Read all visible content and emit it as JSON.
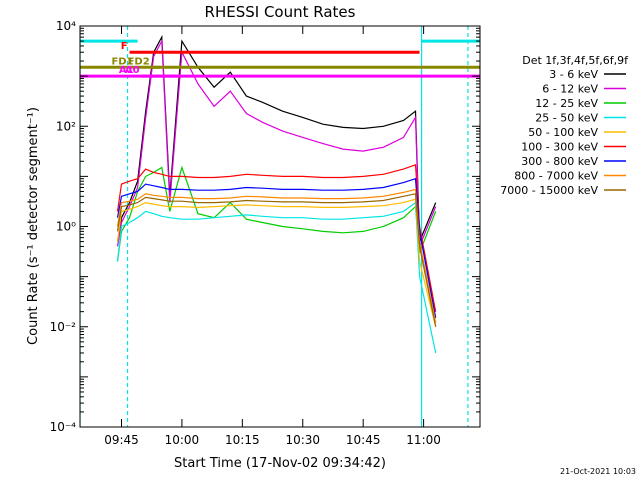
{
  "chart_data": {
    "type": "line",
    "title": "RHESSI Count Rates",
    "xlabel": "Start Time (17-Nov-02 09:34:42)",
    "ylabel": "Count Rate (s⁻¹ detector segment⁻¹)",
    "y_scale": "log",
    "ylim": [
      0.0001,
      10000
    ],
    "y_ticks": [
      "10⁻⁴",
      "10⁻²",
      "10⁰",
      "10²",
      "10⁴"
    ],
    "xlim": [
      "09:34:42",
      "11:14:00"
    ],
    "x_ticks": [
      "09:45",
      "10:00",
      "10:15",
      "10:30",
      "10:45",
      "11:00"
    ],
    "legend_title": "Det 1f,3f,4f,5f,6f,9f",
    "legend_position": "right",
    "series": [
      {
        "name": "3 - 6 keV",
        "color": "#000000",
        "x": [
          "09:44",
          "09:45",
          "09:47",
          "09:49",
          "09:51",
          "09:53",
          "09:55",
          "09:57",
          "10:00",
          "10:04",
          "10:08",
          "10:12",
          "10:16",
          "10:20",
          "10:25",
          "10:30",
          "10:35",
          "10:40",
          "10:45",
          "10:50",
          "10:55",
          "10:58",
          "10:59",
          "11:03"
        ],
        "values": [
          0.5,
          1.5,
          3,
          8,
          200,
          3000,
          6000,
          4,
          5000,
          1500,
          600,
          1200,
          400,
          300,
          200,
          150,
          110,
          95,
          90,
          100,
          130,
          200,
          0.5,
          3
        ]
      },
      {
        "name": "6 - 12 keV",
        "color": "#dd00dd",
        "x": [
          "09:44",
          "09:45",
          "09:47",
          "09:49",
          "09:51",
          "09:53",
          "09:55",
          "09:57",
          "10:00",
          "10:04",
          "10:08",
          "10:12",
          "10:16",
          "10:20",
          "10:25",
          "10:30",
          "10:35",
          "10:40",
          "10:45",
          "10:50",
          "10:55",
          "10:58",
          "10:59",
          "11:03"
        ],
        "values": [
          0.4,
          1.2,
          2.5,
          6,
          150,
          2500,
          5000,
          3,
          3000,
          700,
          250,
          500,
          180,
          120,
          80,
          60,
          45,
          35,
          32,
          38,
          60,
          150,
          0.4,
          2.5
        ]
      },
      {
        "name": "12 - 25 keV",
        "color": "#00cc00",
        "x": [
          "09:44",
          "09:45",
          "09:47",
          "09:49",
          "09:51",
          "09:53",
          "09:55",
          "09:57",
          "10:00",
          "10:04",
          "10:08",
          "10:12",
          "10:16",
          "10:20",
          "10:25",
          "10:30",
          "10:35",
          "10:40",
          "10:45",
          "10:50",
          "10:55",
          "10:58",
          "10:59",
          "11:03"
        ],
        "values": [
          0.2,
          0.8,
          1.5,
          5,
          10,
          12,
          15,
          2,
          15,
          1.8,
          1.5,
          3,
          1.4,
          1.2,
          1.0,
          0.9,
          0.8,
          0.75,
          0.8,
          1.0,
          1.5,
          2.5,
          0.3,
          2
        ]
      },
      {
        "name": "25 - 50 keV",
        "color": "#00e5e5",
        "x": [
          "09:44",
          "09:45",
          "09:47",
          "09:49",
          "09:51",
          "09:53",
          "09:55",
          "09:57",
          "10:00",
          "10:04",
          "10:08",
          "10:12",
          "10:16",
          "10:20",
          "10:25",
          "10:30",
          "10:35",
          "10:40",
          "10:45",
          "10:50",
          "10:55",
          "10:58",
          "10:59",
          "11:03"
        ],
        "values": [
          0.2,
          1,
          1.2,
          1.5,
          2,
          1.8,
          1.6,
          1.5,
          1.4,
          1.4,
          1.5,
          1.6,
          1.7,
          1.6,
          1.5,
          1.5,
          1.4,
          1.4,
          1.5,
          1.6,
          2,
          3,
          0.1,
          0.003
        ]
      },
      {
        "name": "50 - 100 keV",
        "color": "#ffbb00",
        "x": [
          "09:44",
          "09:45",
          "09:47",
          "09:49",
          "09:51",
          "09:53",
          "09:55",
          "09:57",
          "10:00",
          "10:04",
          "10:08",
          "10:12",
          "10:16",
          "10:20",
          "10:25",
          "10:30",
          "10:35",
          "10:40",
          "10:45",
          "10:50",
          "10:55",
          "10:58",
          "10:59",
          "11:03"
        ],
        "values": [
          0.5,
          2,
          2.2,
          2.5,
          3,
          2.8,
          2.6,
          2.5,
          2.5,
          2.4,
          2.5,
          2.6,
          2.7,
          2.6,
          2.5,
          2.5,
          2.4,
          2.4,
          2.5,
          2.6,
          3,
          3.5,
          0.2,
          0.01
        ]
      },
      {
        "name": "100 - 300 keV",
        "color": "#ff0000",
        "x": [
          "09:44",
          "09:45",
          "09:47",
          "09:49",
          "09:51",
          "09:53",
          "09:55",
          "09:57",
          "10:00",
          "10:04",
          "10:08",
          "10:12",
          "10:16",
          "10:20",
          "10:25",
          "10:30",
          "10:35",
          "10:40",
          "10:45",
          "10:50",
          "10:55",
          "10:58",
          "10:59",
          "11:03"
        ],
        "values": [
          2,
          7,
          8,
          9,
          14,
          12,
          11,
          10,
          10,
          9.5,
          9.5,
          10,
          11,
          10.5,
          10,
          10,
          9.5,
          9.5,
          10,
          11,
          14,
          17,
          1,
          0.02
        ]
      },
      {
        "name": "300 - 800 keV",
        "color": "#0000ff",
        "x": [
          "09:44",
          "09:45",
          "09:47",
          "09:49",
          "09:51",
          "09:53",
          "09:55",
          "09:57",
          "10:00",
          "10:04",
          "10:08",
          "10:12",
          "10:16",
          "10:20",
          "10:25",
          "10:30",
          "10:35",
          "10:40",
          "10:45",
          "10:50",
          "10:55",
          "10:58",
          "10:59",
          "11:03"
        ],
        "values": [
          1.5,
          4,
          4.5,
          5,
          7,
          6.5,
          6,
          5.5,
          5.5,
          5.3,
          5.3,
          5.5,
          6,
          5.8,
          5.5,
          5.5,
          5.3,
          5.3,
          5.5,
          6,
          7.5,
          9,
          0.8,
          0.015
        ]
      },
      {
        "name": "800 - 7000 keV",
        "color": "#ff8800",
        "x": [
          "09:44",
          "09:45",
          "09:47",
          "09:49",
          "09:51",
          "09:53",
          "09:55",
          "09:57",
          "10:00",
          "10:04",
          "10:08",
          "10:12",
          "10:16",
          "10:20",
          "10:25",
          "10:30",
          "10:35",
          "10:40",
          "10:45",
          "10:50",
          "10:55",
          "10:58",
          "10:59",
          "11:03"
        ],
        "values": [
          1,
          3,
          3.2,
          3.5,
          4.5,
          4.2,
          4,
          3.8,
          3.8,
          3.6,
          3.6,
          3.7,
          4,
          3.9,
          3.7,
          3.7,
          3.6,
          3.6,
          3.7,
          4,
          4.8,
          5.5,
          0.5,
          0.012
        ]
      },
      {
        "name": "7000 - 15000 keV",
        "color": "#996600",
        "x": [
          "09:44",
          "09:45",
          "09:47",
          "09:49",
          "09:51",
          "09:53",
          "09:55",
          "09:57",
          "10:00",
          "10:04",
          "10:08",
          "10:12",
          "10:16",
          "10:20",
          "10:25",
          "10:30",
          "10:35",
          "10:40",
          "10:45",
          "10:50",
          "10:55",
          "10:58",
          "10:59",
          "11:03"
        ],
        "values": [
          0.8,
          2.5,
          2.7,
          3,
          3.8,
          3.6,
          3.4,
          3.2,
          3.2,
          3,
          3,
          3.1,
          3.3,
          3.2,
          3.1,
          3.1,
          3,
          3,
          3.1,
          3.3,
          4,
          4.5,
          0.4,
          0.01
        ]
      }
    ],
    "flag_bars": [
      {
        "label": "F",
        "color": "#ff0000",
        "start": "09:47:00",
        "end": "10:59:00",
        "level": 3000
      },
      {
        "label": "FD1",
        "color": "#888800",
        "start": "09:34:42",
        "end": "11:14:00",
        "level": 1500
      },
      {
        "label": "FD2",
        "color": "#888800",
        "start": "09:52:30",
        "end": "09:54:30",
        "level": 1500
      },
      {
        "label": "A0",
        "color": "#ff00ff",
        "start": "09:50:00",
        "end": "09:59:00",
        "level": 1000
      },
      {
        "label": "A1",
        "color": "#ff00ff",
        "start": "09:34:42",
        "end": "11:14:00",
        "level": 1000
      }
    ],
    "night_bars": [
      {
        "color": "#00e5e5",
        "start": "09:34:42",
        "end": "09:49:00",
        "level": 5000
      },
      {
        "color": "#00e5e5",
        "start": "10:59:30",
        "end": "11:14:00",
        "level": 5000
      }
    ],
    "solid_vlines": [
      {
        "color": "#00e5e5",
        "at": "09:34:42"
      },
      {
        "color": "#00e5e5",
        "at": "10:59:30"
      }
    ],
    "dashed_vlines": [
      {
        "color": "#00e5e5",
        "at": "09:46:30"
      },
      {
        "color": "#00e5e5",
        "at": "11:11:00"
      }
    ],
    "grid": false
  },
  "footer": {
    "stamp": "21-Oct-2021 10:03"
  }
}
